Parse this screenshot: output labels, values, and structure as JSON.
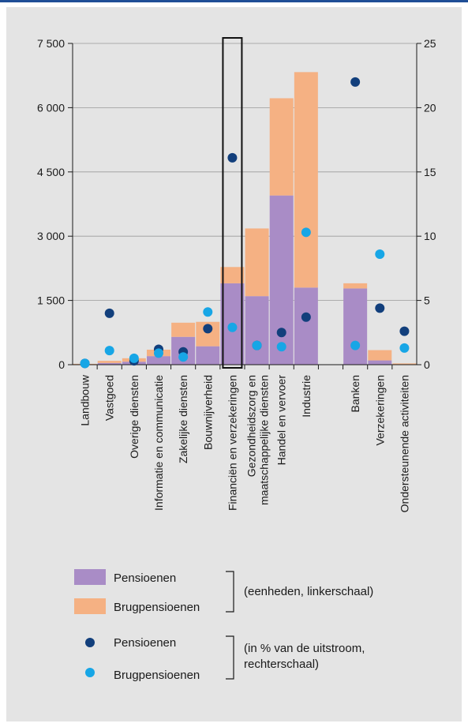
{
  "chart_data": {
    "type": "bar",
    "categories": [
      "Landbouw",
      "Vastgoed",
      "Overige diensten",
      "Informatie en communicatie",
      "Zakelijke diensten",
      "Bouwnijverheid",
      "Financiën en verzekeringen",
      "Gezondheidszorg en maatschappelijke diensten",
      "Handel en vervoer",
      "Industrie",
      "",
      "Banken",
      "Verzekeringen",
      "Ondersteunende activiteiten"
    ],
    "category_lines": [
      [
        "Landbouw"
      ],
      [
        "Vastgoed"
      ],
      [
        "Overige diensten"
      ],
      [
        "Informatie en communicatie"
      ],
      [
        "Zakelijke diensten"
      ],
      [
        "Bouwnijverheid"
      ],
      [
        "Financiën en verzekeringen"
      ],
      [
        "Gezondheidszorg en",
        "maatschappelijke diensten"
      ],
      [
        "Handel en vervoer"
      ],
      [
        "Industrie"
      ],
      [],
      [
        "Banken"
      ],
      [
        "Verzekeringen"
      ],
      [
        "Ondersteunende activiteiten"
      ]
    ],
    "stacked_series": [
      {
        "name": "Pensioenen",
        "color": "#a98cc6",
        "values": [
          10,
          40,
          70,
          200,
          650,
          430,
          1900,
          1600,
          3950,
          1800,
          null,
          1780,
          100,
          10
        ]
      },
      {
        "name": "Brugpensioenen",
        "color": "#f5b183",
        "values": [
          10,
          50,
          80,
          150,
          330,
          570,
          380,
          1580,
          2270,
          5030,
          null,
          120,
          240,
          20
        ]
      }
    ],
    "dot_series": [
      {
        "name": "Pensioenen",
        "color": "#123f7c",
        "values": [
          0.1,
          4.0,
          0.3,
          1.2,
          1.0,
          2.8,
          16.1,
          1.5,
          2.5,
          3.7,
          null,
          22.0,
          4.4,
          2.6
        ]
      },
      {
        "name": "Brugpensioenen",
        "color": "#17a6e6",
        "values": [
          0.1,
          1.1,
          0.5,
          0.9,
          0.6,
          4.1,
          2.9,
          1.5,
          1.4,
          10.3,
          null,
          1.5,
          8.6,
          1.3
        ]
      }
    ],
    "y_left": {
      "min": 0,
      "max": 7500,
      "ticks": [
        0,
        1500,
        3000,
        4500,
        6000,
        7500
      ],
      "tick_labels": [
        "0",
        "1 500",
        "3 000",
        "4 500",
        "6 000",
        "7 500"
      ]
    },
    "y_right": {
      "min": 0,
      "max": 25,
      "ticks": [
        0,
        5,
        10,
        15,
        20,
        25
      ],
      "tick_labels": [
        "0",
        "5",
        "10",
        "15",
        "20",
        "25"
      ]
    },
    "grid": true,
    "highlighted_category": "Financiën en verzekeringen"
  },
  "legend": {
    "bars": [
      {
        "label": "Pensioenen",
        "color": "#a98cc6"
      },
      {
        "label": "Brugpensioenen",
        "color": "#f5b183"
      }
    ],
    "bars_note": "(eenheden, linkerschaal)",
    "dots": [
      {
        "label": "Pensioenen",
        "color": "#123f7c"
      },
      {
        "label": "Brugpensioenen",
        "color": "#17a6e6"
      }
    ],
    "dots_note_lines": [
      "(in % van de uitstroom,",
      "rechterschaal)"
    ]
  }
}
